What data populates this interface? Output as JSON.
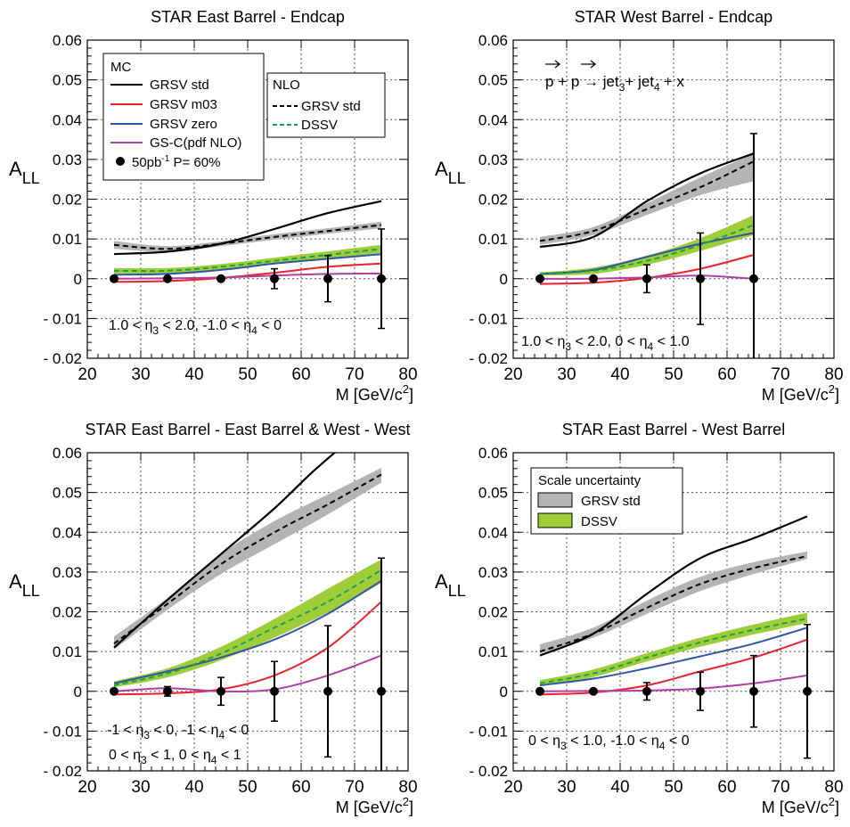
{
  "colors": {
    "grsv_std": "#000000",
    "grsv_m03": "#e8232a",
    "grsv_zero": "#2f55a4",
    "gsc": "#b03ea3",
    "nlo_dssv": "#19a04b",
    "band_grsv": "#b4b4b4",
    "band_dssv": "#9fcd3a",
    "grid": "#555555"
  },
  "legend_mc": {
    "title": "MC",
    "items": [
      "GRSV std",
      "GRSV m03",
      "GRSV zero",
      "GS-C(pdf NLO)"
    ],
    "data_label": "50pb",
    "data_label_exp": "-1",
    "data_label_tail": " P= 60%"
  },
  "legend_nlo": {
    "title": "NLO",
    "items": [
      "GRSV std",
      "DSSV"
    ]
  },
  "legend_scale": {
    "title": "Scale uncertainty",
    "items": [
      "GRSV std",
      "DSSV"
    ]
  },
  "reaction": {
    "p": "p",
    "plus": " + ",
    "arrow": " → ",
    "jet3": "jet",
    "sub3": "3",
    "plus2": "+ ",
    "jet4": "jet",
    "sub4": "4",
    "tail": "+ x"
  },
  "chart_data": [
    {
      "type": "line",
      "title": "STAR East Barrel - Endcap",
      "xlabel": "M [GeV/c",
      "xlabel_exp": "2",
      "xlabel_close": "]",
      "ylabel": "A",
      "ylabel_sub": "LL",
      "xlim": [
        20,
        80
      ],
      "ylim": [
        -0.02,
        0.06
      ],
      "xticks": [
        20,
        30,
        40,
        50,
        60,
        70,
        80
      ],
      "yticks": [
        -0.02,
        -0.01,
        0,
        0.01,
        0.02,
        0.03,
        0.04,
        0.05,
        0.06
      ],
      "ytick_labels": [
        "- 0.02",
        "- 0.01",
        "0",
        "0.01",
        "0.02",
        "0.03",
        "0.04",
        "0.05",
        "0.06"
      ],
      "grid": true,
      "annotation": {
        "parts": [
          {
            "t": "1.0 < η"
          },
          {
            "t": "3",
            "sub": true
          },
          {
            "t": " < 2.0, -1.0 < η"
          },
          {
            "t": "4",
            "sub": true
          },
          {
            "t": " < 0"
          }
        ]
      },
      "x": [
        25,
        35,
        45,
        55,
        65,
        75
      ],
      "series": [
        {
          "name": "GRSV std",
          "x": [
            25,
            35,
            45,
            55,
            65,
            75
          ],
          "y": [
            0.0062,
            0.0068,
            0.0088,
            0.0125,
            0.0165,
            0.0195
          ]
        },
        {
          "name": "GRSV m03",
          "x": [
            25,
            35,
            45,
            55,
            65,
            75
          ],
          "y": [
            -0.0008,
            -0.0006,
            0.0002,
            0.0015,
            0.003,
            0.0038
          ]
        },
        {
          "name": "GRSV zero",
          "x": [
            25,
            35,
            45,
            55,
            65,
            75
          ],
          "y": [
            0.001,
            0.0012,
            0.0022,
            0.0038,
            0.005,
            0.0062
          ]
        },
        {
          "name": "GS-C(pdf NLO)",
          "x": [
            25,
            35,
            45,
            55,
            65,
            75
          ],
          "y": [
            0.0,
            0.0001,
            0.0003,
            0.0008,
            0.0012,
            0.0013
          ]
        },
        {
          "name": "NLO GRSV std",
          "x": [
            25,
            35,
            45,
            55,
            65,
            75
          ],
          "y": [
            0.0085,
            0.0075,
            0.0088,
            0.0105,
            0.012,
            0.0135
          ]
        },
        {
          "name": "NLO DSSV",
          "x": [
            25,
            35,
            45,
            55,
            65,
            75
          ],
          "y": [
            0.002,
            0.002,
            0.003,
            0.0045,
            0.006,
            0.0075
          ]
        }
      ],
      "bands": [
        {
          "name": "GRSV std",
          "x": [
            25,
            35,
            45,
            55,
            65,
            75
          ],
          "low": [
            0.0075,
            0.0068,
            0.0082,
            0.0098,
            0.0113,
            0.0127
          ],
          "high": [
            0.0095,
            0.0082,
            0.0094,
            0.0112,
            0.0127,
            0.0143
          ]
        },
        {
          "name": "DSSV",
          "x": [
            25,
            35,
            45,
            55,
            65,
            75
          ],
          "low": [
            0.0013,
            0.0013,
            0.0023,
            0.0037,
            0.0051,
            0.0065
          ],
          "high": [
            0.0027,
            0.0027,
            0.0037,
            0.0053,
            0.0069,
            0.0085
          ]
        }
      ],
      "points": {
        "x": [
          25,
          35,
          45,
          55,
          65,
          75
        ],
        "y": [
          0,
          0,
          0,
          0,
          0,
          0
        ],
        "err": [
          0.0,
          0.0,
          0.0005,
          0.0025,
          0.0058,
          0.0125
        ]
      }
    },
    {
      "type": "line",
      "title": "STAR West Barrel - Endcap",
      "xlabel": "M [GeV/c",
      "xlabel_exp": "2",
      "xlabel_close": "]",
      "ylabel": "A",
      "ylabel_sub": "LL",
      "xlim": [
        20,
        80
      ],
      "ylim": [
        -0.02,
        0.06
      ],
      "xticks": [
        20,
        30,
        40,
        50,
        60,
        70,
        80
      ],
      "yticks": [
        -0.02,
        -0.01,
        0,
        0.01,
        0.02,
        0.03,
        0.04,
        0.05,
        0.06
      ],
      "ytick_labels": [
        "- 0.02",
        "- 0.01",
        "0",
        "0.01",
        "0.02",
        "0.03",
        "0.04",
        "0.05",
        "0.06"
      ],
      "grid": true,
      "annotation": {
        "parts": [
          {
            "t": "1.0 < η"
          },
          {
            "t": "3",
            "sub": true
          },
          {
            "t": " < 2.0, 0 < η"
          },
          {
            "t": "4",
            "sub": true
          },
          {
            "t": " < 1.0"
          }
        ]
      },
      "x": [
        25,
        35,
        45,
        55,
        65
      ],
      "series": [
        {
          "name": "GRSV std",
          "x": [
            25,
            35,
            45,
            55,
            65
          ],
          "y": [
            0.008,
            0.0105,
            0.0195,
            0.0265,
            0.0315
          ]
        },
        {
          "name": "GRSV m03",
          "x": [
            25,
            35,
            45,
            55,
            65
          ],
          "y": [
            -0.0013,
            -0.001,
            0.0002,
            0.0025,
            0.006
          ]
        },
        {
          "name": "GRSV zero",
          "x": [
            25,
            35,
            45,
            55,
            65
          ],
          "y": [
            0.0012,
            0.0022,
            0.0055,
            0.0088,
            0.0115
          ]
        },
        {
          "name": "GS-C(pdf NLO)",
          "x": [
            25,
            35,
            45,
            55,
            65
          ],
          "y": [
            0.0,
            0.0,
            0.0003,
            0.0008,
            0.0
          ]
        },
        {
          "name": "NLO GRSV std",
          "x": [
            25,
            35,
            45,
            55,
            65
          ],
          "y": [
            0.0095,
            0.012,
            0.0175,
            0.023,
            0.0295
          ]
        },
        {
          "name": "NLO DSSV",
          "x": [
            25,
            35,
            45,
            55,
            65
          ],
          "y": [
            0.0012,
            0.002,
            0.0045,
            0.0085,
            0.0135
          ]
        }
      ],
      "bands": [
        {
          "name": "GRSV std",
          "x": [
            25,
            35,
            45,
            55,
            65
          ],
          "low": [
            0.0085,
            0.011,
            0.016,
            0.021,
            0.0245
          ],
          "high": [
            0.0105,
            0.013,
            0.019,
            0.0255,
            0.0315
          ]
        },
        {
          "name": "DSSV",
          "x": [
            25,
            35,
            45,
            55,
            65
          ],
          "low": [
            0.0008,
            0.0012,
            0.0035,
            0.007,
            0.011
          ],
          "high": [
            0.0016,
            0.0028,
            0.0058,
            0.0102,
            0.016
          ]
        }
      ],
      "points": {
        "x": [
          25,
          35,
          45,
          55,
          65
        ],
        "y": [
          0,
          0,
          0,
          0,
          0
        ],
        "err": [
          0.0,
          0.0,
          0.0035,
          0.0115,
          0.0365
        ]
      }
    },
    {
      "type": "line",
      "title": "STAR East Barrel - East Barrel & West - West",
      "xlabel": "M [GeV/c",
      "xlabel_exp": "2",
      "xlabel_close": "]",
      "ylabel": "A",
      "ylabel_sub": "LL",
      "xlim": [
        20,
        80
      ],
      "ylim": [
        -0.02,
        0.06
      ],
      "xticks": [
        20,
        30,
        40,
        50,
        60,
        70,
        80
      ],
      "yticks": [
        -0.02,
        -0.01,
        0,
        0.01,
        0.02,
        0.03,
        0.04,
        0.05,
        0.06
      ],
      "ytick_labels": [
        "- 0.02",
        "- 0.01",
        "0",
        "0.01",
        "0.02",
        "0.03",
        "0.04",
        "0.05",
        "0.06"
      ],
      "grid": true,
      "annotation": {
        "parts": [
          {
            "t": "-1 < η"
          },
          {
            "t": "3",
            "sub": true
          },
          {
            "t": " < 0, -1 < η"
          },
          {
            "t": "4",
            "sub": true
          },
          {
            "t": " < 0"
          }
        ]
      },
      "annotation2": {
        "parts": [
          {
            "t": "0 < η"
          },
          {
            "t": "3",
            "sub": true
          },
          {
            "t": " < 1,  0 < η"
          },
          {
            "t": "4",
            "sub": true
          },
          {
            "t": " < 1"
          }
        ]
      },
      "x": [
        25,
        35,
        45,
        55,
        65,
        75
      ],
      "series": [
        {
          "name": "GRSV std",
          "x": [
            25,
            35,
            45,
            55,
            62,
            68
          ],
          "y": [
            0.011,
            0.023,
            0.0345,
            0.046,
            0.055,
            0.062
          ]
        },
        {
          "name": "GRSV m03",
          "x": [
            25,
            35,
            45,
            55,
            65,
            75
          ],
          "y": [
            -0.0008,
            -0.0005,
            0.0005,
            0.004,
            0.011,
            0.0225
          ]
        },
        {
          "name": "GRSV zero",
          "x": [
            25,
            35,
            45,
            55,
            65,
            75
          ],
          "y": [
            0.002,
            0.005,
            0.0085,
            0.013,
            0.0195,
            0.0278
          ]
        },
        {
          "name": "GS-C(pdf NLO)",
          "x": [
            25,
            35,
            45,
            55,
            65,
            75
          ],
          "y": [
            0.0,
            0.0008,
            0.0,
            0.0005,
            0.004,
            0.009
          ]
        },
        {
          "name": "NLO GRSV std",
          "x": [
            25,
            35,
            45,
            55,
            65,
            75
          ],
          "y": [
            0.012,
            0.022,
            0.032,
            0.04,
            0.047,
            0.0545
          ]
        },
        {
          "name": "NLO DSSV",
          "x": [
            25,
            35,
            45,
            55,
            65,
            75
          ],
          "y": [
            0.0015,
            0.0045,
            0.0095,
            0.016,
            0.0225,
            0.0305
          ]
        }
      ],
      "bands": [
        {
          "name": "GRSV std",
          "x": [
            25,
            35,
            45,
            55,
            65,
            75
          ],
          "low": [
            0.0105,
            0.0205,
            0.0295,
            0.037,
            0.0445,
            0.0525
          ],
          "high": [
            0.0138,
            0.0235,
            0.0345,
            0.0428,
            0.0495,
            0.0562
          ]
        },
        {
          "name": "DSSV",
          "x": [
            25,
            35,
            45,
            55,
            65,
            75
          ],
          "low": [
            0.001,
            0.0035,
            0.0078,
            0.0135,
            0.0198,
            0.0272
          ],
          "high": [
            0.0025,
            0.0058,
            0.0112,
            0.0182,
            0.0258,
            0.0332
          ]
        }
      ],
      "points": {
        "x": [
          25,
          35,
          45,
          55,
          65,
          75
        ],
        "y": [
          0,
          0,
          0,
          0,
          0,
          0
        ],
        "err": [
          0.0,
          0.0012,
          0.0035,
          0.0075,
          0.0165,
          0.0335
        ]
      }
    },
    {
      "type": "line",
      "title": "STAR East Barrel - West Barrel",
      "xlabel": "M [GeV/c",
      "xlabel_exp": "2",
      "xlabel_close": "]",
      "ylabel": "A",
      "ylabel_sub": "LL",
      "xlim": [
        20,
        80
      ],
      "ylim": [
        -0.02,
        0.06
      ],
      "xticks": [
        20,
        30,
        40,
        50,
        60,
        70,
        80
      ],
      "yticks": [
        -0.02,
        -0.01,
        0,
        0.01,
        0.02,
        0.03,
        0.04,
        0.05,
        0.06
      ],
      "ytick_labels": [
        "- 0.02",
        "- 0.01",
        "0",
        "0.01",
        "0.02",
        "0.03",
        "0.04",
        "0.05",
        "0.06"
      ],
      "grid": true,
      "annotation": {
        "parts": [
          {
            "t": "0 < η"
          },
          {
            "t": "3",
            "sub": true
          },
          {
            "t": " < 1.0, -1.0 < η"
          },
          {
            "t": "4",
            "sub": true
          },
          {
            "t": " < 0"
          }
        ]
      },
      "x": [
        25,
        35,
        45,
        55,
        65,
        75
      ],
      "series": [
        {
          "name": "GRSV std",
          "x": [
            25,
            35,
            45,
            55,
            65,
            75
          ],
          "y": [
            0.009,
            0.0145,
            0.0245,
            0.0335,
            0.0385,
            0.044
          ]
        },
        {
          "name": "GRSV m03",
          "x": [
            25,
            35,
            45,
            55,
            65,
            75
          ],
          "y": [
            -0.0008,
            -0.0003,
            0.0015,
            0.005,
            0.0085,
            0.013
          ]
        },
        {
          "name": "GRSV zero",
          "x": [
            25,
            35,
            45,
            55,
            65,
            75
          ],
          "y": [
            0.0015,
            0.0032,
            0.0058,
            0.0088,
            0.012,
            0.016
          ]
        },
        {
          "name": "GS-C(pdf NLO)",
          "x": [
            25,
            35,
            45,
            55,
            65,
            75
          ],
          "y": [
            0.0,
            0.0001,
            0.0002,
            0.0007,
            0.002,
            0.004
          ]
        },
        {
          "name": "NLO GRSV std",
          "x": [
            25,
            35,
            45,
            55,
            65,
            75
          ],
          "y": [
            0.01,
            0.0145,
            0.021,
            0.027,
            0.031,
            0.034
          ]
        },
        {
          "name": "NLO DSSV",
          "x": [
            25,
            35,
            45,
            55,
            65,
            75
          ],
          "y": [
            0.002,
            0.0045,
            0.0085,
            0.0123,
            0.0155,
            0.0183
          ]
        }
      ],
      "bands": [
        {
          "name": "GRSV std",
          "x": [
            25,
            35,
            45,
            55,
            65,
            75
          ],
          "low": [
            0.0095,
            0.0135,
            0.0195,
            0.0252,
            0.0295,
            0.0333
          ],
          "high": [
            0.0118,
            0.016,
            0.0228,
            0.0288,
            0.0325,
            0.0352
          ]
        },
        {
          "name": "DSSV",
          "x": [
            25,
            35,
            45,
            55,
            65,
            75
          ],
          "low": [
            0.0015,
            0.0036,
            0.0075,
            0.0112,
            0.0143,
            0.0172
          ],
          "high": [
            0.0028,
            0.0055,
            0.0096,
            0.0135,
            0.0168,
            0.0198
          ]
        }
      ],
      "points": {
        "x": [
          25,
          35,
          45,
          55,
          65,
          75
        ],
        "y": [
          0,
          0,
          0,
          0,
          0,
          0
        ],
        "err": [
          0.0,
          0.0,
          0.0022,
          0.0048,
          0.009,
          0.0168
        ]
      }
    }
  ]
}
